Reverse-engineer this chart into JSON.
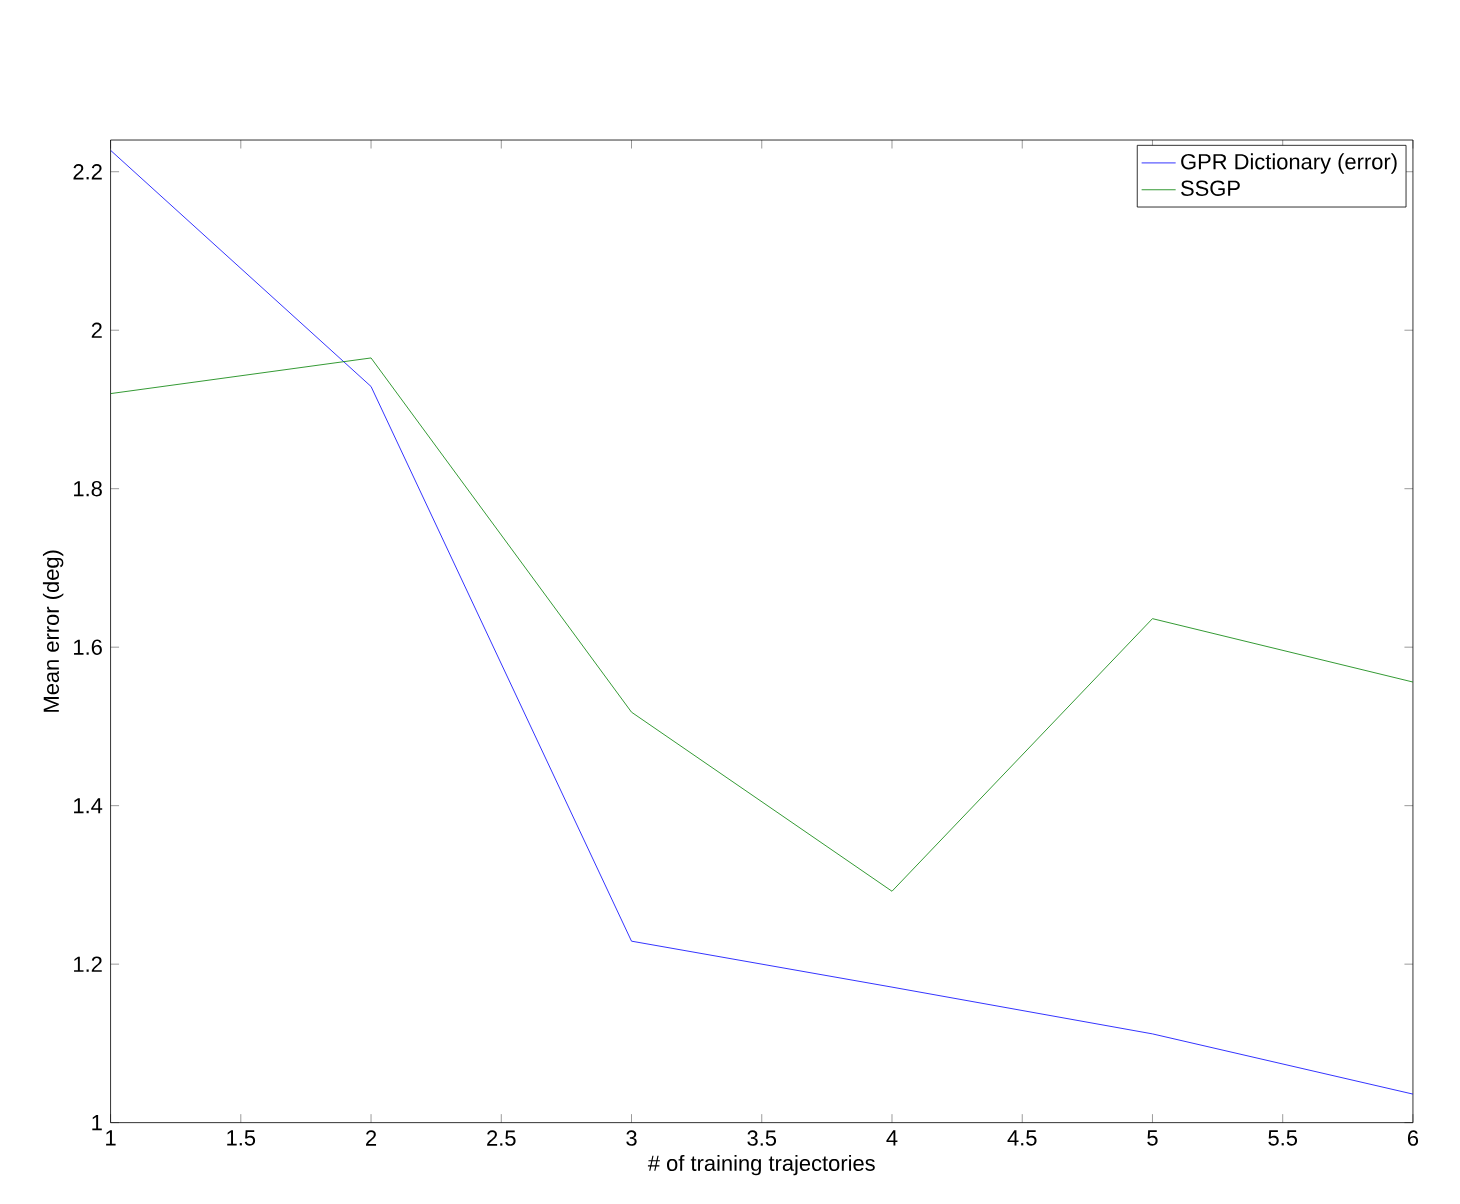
{
  "chart_data": {
    "type": "line",
    "xlabel": "# of training trajectories",
    "ylabel": "Mean error (deg)",
    "x": [
      1,
      2,
      3,
      4,
      5,
      6
    ],
    "series": [
      {
        "name": "GPR Dictionary (error)",
        "color": "#0000ff",
        "values": [
          2.227,
          1.929,
          1.229,
          1.171,
          1.112,
          1.036
        ]
      },
      {
        "name": "SSGP",
        "color": "#008000",
        "values": [
          1.92,
          1.965,
          1.518,
          1.292,
          1.636,
          1.556
        ]
      }
    ],
    "xlim": [
      1,
      6
    ],
    "ylim": [
      1,
      2.24
    ],
    "xticks": [
      1,
      1.5,
      2,
      2.5,
      3,
      3.5,
      4,
      4.5,
      5,
      5.5,
      6
    ],
    "yticks": [
      1,
      1.2,
      1.4,
      1.6,
      1.8,
      2,
      2.2
    ],
    "grid": false,
    "legend": "top right",
    "marker": "none",
    "line_style": "solid"
  }
}
